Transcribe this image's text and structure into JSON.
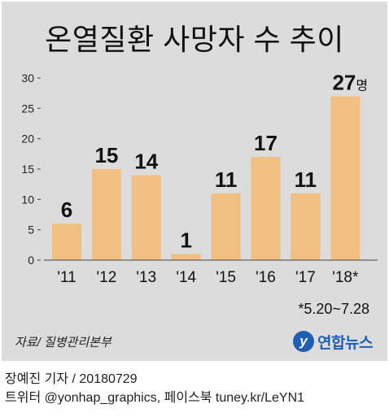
{
  "chart_data": {
    "type": "bar",
    "title": "온열질환 사망자 수 추이",
    "categories": [
      "'11",
      "'12",
      "'13",
      "'14",
      "'15",
      "'16",
      "'17",
      "'18*"
    ],
    "values": [
      6,
      15,
      14,
      1,
      11,
      17,
      11,
      27
    ],
    "value_labels": [
      "6",
      "15",
      "14",
      "1",
      "11",
      "17",
      "11",
      "27"
    ],
    "last_value_unit": "명",
    "ylim": [
      0,
      30
    ],
    "yticks": [
      0,
      5,
      10,
      15,
      20,
      25,
      30
    ],
    "grid": false,
    "bar_color": "#f2bf83",
    "footnote": "*5.20~7.28"
  },
  "source": "자료/ 질병관리본부",
  "logo": {
    "mark": "y",
    "text": "연합뉴스",
    "color": "#1e5fb4"
  },
  "credit": {
    "line1": "장예진 기자 / 20180729",
    "line2": "트위터 @yonhap_graphics, 페이스북 tuney.kr/LeYN1"
  }
}
